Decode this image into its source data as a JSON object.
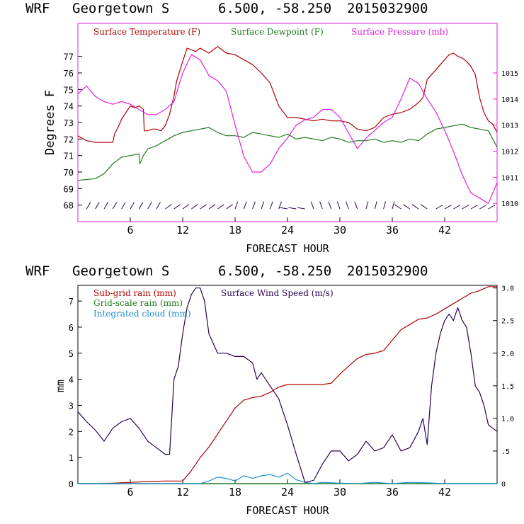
{
  "chart_data": [
    {
      "type": "line",
      "header": {
        "model": "WRF",
        "station": "Georgetown S",
        "coords": "6.500, -58.250",
        "run": "2015032900"
      },
      "xlabel": "FORECAST HOUR",
      "ylabel": "Degrees F",
      "xlim": [
        0,
        48
      ],
      "xticks": [
        6,
        12,
        18,
        24,
        30,
        36,
        42
      ],
      "ylim": [
        67,
        79
      ],
      "yticks": [
        68,
        69,
        70,
        71,
        72,
        73,
        74,
        75,
        76,
        77
      ],
      "y2lim": [
        1009.3,
        1016.9
      ],
      "y2ticks": [
        1010,
        1011,
        1012,
        1013,
        1014,
        1015
      ],
      "legend": [
        "Surface Temperature (F)",
        "Surface Dewpoint (F)",
        "Surface Pressure (mb)"
      ],
      "colors": {
        "temperature": "#b00000",
        "dewpoint": "#1e7a1e",
        "pressure": "#e020e0",
        "barbs": "#2a0050"
      },
      "series": [
        {
          "name": "Surface Temperature (F)",
          "axis": "left",
          "x": [
            0,
            1,
            2,
            3,
            4,
            4.2,
            4.6,
            5,
            5.5,
            6,
            6.5,
            7,
            7.5,
            7.6,
            8,
            8.5,
            9,
            9.5,
            10,
            10.5,
            11,
            11.3,
            12,
            12.5,
            13,
            13.5,
            14,
            15,
            16,
            17,
            18,
            19,
            20,
            21,
            22,
            23,
            24,
            25,
            26,
            27,
            28,
            29,
            30,
            31,
            32,
            33,
            34,
            35,
            36,
            37,
            38,
            39,
            39.5,
            40,
            41,
            42,
            42.5,
            43,
            43.5,
            44,
            44.5,
            45,
            45.5,
            46,
            46.5,
            47,
            47.5,
            48
          ],
          "y": [
            72.2,
            71.9,
            71.8,
            71.8,
            71.8,
            72.3,
            72.7,
            73.2,
            73.6,
            74.0,
            73.9,
            74.0,
            73.8,
            72.5,
            72.5,
            72.6,
            72.6,
            72.5,
            72.8,
            73.5,
            74.6,
            75.5,
            76.7,
            77.5,
            77.4,
            77.3,
            77.5,
            77.2,
            77.6,
            77.2,
            77.1,
            76.8,
            76.5,
            76.0,
            75.4,
            74.0,
            73.3,
            73.3,
            73.2,
            73.1,
            73.2,
            73.1,
            73.1,
            73.0,
            72.6,
            72.5,
            72.7,
            73.3,
            73.5,
            73.6,
            73.8,
            74.2,
            74.5,
            75.6,
            76.2,
            76.8,
            77.1,
            77.2,
            77.0,
            76.9,
            76.7,
            76.4,
            75.9,
            74.5,
            73.6,
            73.1,
            72.9,
            72.4
          ]
        },
        {
          "name": "Surface Dewpoint (F)",
          "axis": "left",
          "x": [
            0,
            2,
            3,
            3.5,
            4,
            5,
            6,
            7,
            7.1,
            7.5,
            8,
            9,
            10,
            11,
            11.5,
            12,
            13,
            14,
            15,
            16,
            17,
            18,
            19,
            20,
            21,
            22,
            23,
            24,
            25,
            26,
            27,
            28,
            29,
            30,
            31,
            32,
            33,
            34,
            35,
            36,
            37,
            38,
            39,
            40,
            41,
            42,
            43,
            44,
            45,
            46,
            47,
            47.5,
            48
          ],
          "y": [
            69.5,
            69.6,
            69.9,
            70.2,
            70.5,
            70.9,
            71.0,
            71.1,
            70.5,
            71.0,
            71.4,
            71.6,
            71.9,
            72.2,
            72.3,
            72.4,
            72.5,
            72.6,
            72.7,
            72.4,
            72.2,
            72.2,
            72.1,
            72.4,
            72.3,
            72.2,
            72.1,
            72.3,
            72.0,
            72.1,
            72.0,
            71.9,
            72.1,
            72.0,
            71.8,
            71.9,
            71.9,
            72.0,
            71.8,
            71.9,
            71.8,
            72.0,
            71.9,
            72.3,
            72.6,
            72.7,
            72.8,
            72.9,
            72.7,
            72.6,
            72.5,
            72.0,
            71.5
          ]
        },
        {
          "name": "Surface Pressure (mb)",
          "axis": "right",
          "x": [
            0,
            1,
            2,
            3,
            4,
            5,
            6,
            7,
            8,
            9,
            10,
            11,
            12,
            13,
            14,
            15,
            16,
            17,
            18,
            19,
            20,
            21,
            22,
            23,
            24,
            25,
            26,
            27,
            28,
            29,
            30,
            31,
            32,
            33,
            34,
            35,
            36,
            37,
            38,
            39,
            40,
            41,
            42,
            43,
            44,
            45,
            46,
            47,
            48
          ],
          "y": [
            1014.2,
            1014.5,
            1014.1,
            1013.9,
            1013.8,
            1013.9,
            1013.8,
            1013.6,
            1013.4,
            1013.4,
            1013.6,
            1013.9,
            1015.0,
            1015.7,
            1015.5,
            1014.9,
            1014.7,
            1014.3,
            1013.0,
            1011.8,
            1011.2,
            1011.2,
            1011.5,
            1012.1,
            1012.5,
            1013.0,
            1013.2,
            1013.3,
            1013.6,
            1013.6,
            1013.3,
            1012.7,
            1012.1,
            1012.5,
            1012.8,
            1013.1,
            1013.3,
            1014.0,
            1014.8,
            1014.6,
            1014.0,
            1013.5,
            1012.8,
            1012.0,
            1011.1,
            1010.4,
            1010.2,
            1010.0,
            1010.8
          ]
        }
      ]
    },
    {
      "type": "line",
      "header": {
        "model": "WRF",
        "station": "Georgetown S",
        "coords": "6.500, -58.250",
        "run": "2015032900"
      },
      "xlabel": "FORECAST HOUR",
      "ylabel": "mm",
      "xlim": [
        0,
        48
      ],
      "xticks": [
        6,
        12,
        18,
        24,
        30,
        36,
        42
      ],
      "ylim": [
        0,
        7.6
      ],
      "yticks": [
        0,
        1,
        2,
        3,
        4,
        5,
        6,
        7
      ],
      "y2lim": [
        0,
        3.04
      ],
      "y2ticks": [
        0,
        0.5,
        1.0,
        1.5,
        2.0,
        2.5,
        3.0
      ],
      "y2ticklabels": [
        "0",
        ".5",
        "1.0",
        "1.5",
        "2.0",
        "2.5",
        "3.0"
      ],
      "legend": [
        "Sub-grid rain (mm)",
        "Grid-scale rain (mm)",
        "Integrated cloud (mm)",
        "Surface Wind Speed (m/s)"
      ],
      "colors": {
        "subgrid": "#b00000",
        "gridscale": "#1e7a1e",
        "cloud": "#1e90d0",
        "wind": "#2a0050"
      },
      "series": [
        {
          "name": "Sub-grid rain (mm)",
          "axis": "left",
          "x": [
            0,
            2,
            4,
            6,
            8,
            10,
            12,
            13,
            14,
            15,
            16,
            17,
            18,
            19,
            20,
            21,
            22,
            23,
            24,
            25,
            26,
            27,
            28,
            29,
            30,
            31,
            32,
            33,
            34,
            35,
            36,
            37,
            38,
            39,
            40,
            41,
            42,
            43,
            44,
            45,
            46,
            47,
            48
          ],
          "y": [
            0,
            0,
            0.02,
            0.05,
            0.08,
            0.1,
            0.1,
            0.5,
            1.0,
            1.4,
            1.9,
            2.4,
            2.9,
            3.2,
            3.3,
            3.35,
            3.5,
            3.7,
            3.8,
            3.8,
            3.8,
            3.8,
            3.8,
            3.85,
            4.2,
            4.5,
            4.8,
            4.95,
            5.0,
            5.1,
            5.5,
            5.9,
            6.1,
            6.3,
            6.35,
            6.5,
            6.7,
            6.9,
            7.1,
            7.3,
            7.4,
            7.55,
            7.55
          ]
        },
        {
          "name": "Grid-scale rain (mm)",
          "axis": "left",
          "x": [
            0,
            48
          ],
          "y": [
            0,
            0
          ]
        },
        {
          "name": "Integrated cloud (mm)",
          "axis": "left",
          "x": [
            0,
            14,
            15,
            16,
            17,
            18,
            19,
            20,
            21,
            22,
            23,
            24,
            25,
            26,
            27,
            28,
            30,
            32,
            34,
            36,
            38,
            40,
            42,
            44,
            46,
            48
          ],
          "y": [
            0,
            0,
            0.1,
            0.25,
            0.2,
            0.1,
            0.3,
            0.2,
            0.3,
            0.35,
            0.25,
            0.4,
            0.15,
            0.05,
            0,
            0.05,
            0.02,
            0,
            0.05,
            0,
            0.05,
            0.03,
            0,
            0,
            0,
            0
          ]
        },
        {
          "name": "Surface Wind Speed (m/s)",
          "axis": "right",
          "x": [
            0,
            1,
            2,
            3,
            4,
            5,
            6,
            7,
            8,
            9,
            10,
            10.5,
            11,
            11.5,
            12,
            12.5,
            13,
            13.5,
            14,
            14.5,
            15,
            16,
            17,
            18,
            19,
            20,
            20.5,
            21,
            22,
            23,
            24,
            25,
            26,
            27,
            28,
            29,
            30,
            31,
            32,
            33,
            34,
            35,
            36,
            37,
            38,
            39,
            39.5,
            40,
            40.5,
            41,
            41.5,
            42,
            42.5,
            43,
            43.5,
            44,
            44.5,
            45,
            45.5,
            46,
            46.5,
            47,
            48
          ],
          "y": [
            1.1,
            0.95,
            0.82,
            0.65,
            0.85,
            0.95,
            1.0,
            0.85,
            0.65,
            0.55,
            0.45,
            0.45,
            1.6,
            1.8,
            2.3,
            2.7,
            2.9,
            3.0,
            3.0,
            2.8,
            2.3,
            2.0,
            2.0,
            1.95,
            1.95,
            1.85,
            1.6,
            1.7,
            1.5,
            1.3,
            0.9,
            0.45,
            0.02,
            0.05,
            0.3,
            0.5,
            0.5,
            0.35,
            0.45,
            0.65,
            0.5,
            0.55,
            0.75,
            0.5,
            0.55,
            0.8,
            1.0,
            0.6,
            1.5,
            2.0,
            2.3,
            2.5,
            2.6,
            2.5,
            2.7,
            2.5,
            2.4,
            2.0,
            1.5,
            1.4,
            1.2,
            0.9,
            0.8
          ]
        }
      ]
    }
  ]
}
